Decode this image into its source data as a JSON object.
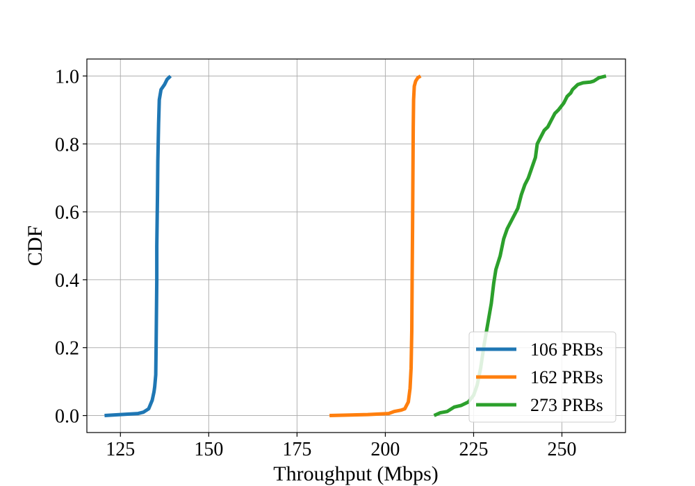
{
  "chart_data": {
    "type": "line",
    "title": "",
    "xlabel": "Throughput (Mbps)",
    "ylabel": "CDF",
    "xlim": [
      115.5,
      268
    ],
    "ylim": [
      -0.05,
      1.05
    ],
    "xticks": [
      125,
      150,
      175,
      200,
      225,
      250
    ],
    "yticks": [
      0.0,
      0.2,
      0.4,
      0.6,
      0.8,
      1.0
    ],
    "xtick_labels": [
      "125",
      "150",
      "175",
      "200",
      "225",
      "250"
    ],
    "ytick_labels": [
      "0.0",
      "0.2",
      "0.4",
      "0.6",
      "0.8",
      "1.0"
    ],
    "grid": true,
    "legend_position": "lower-right",
    "series": [
      {
        "name": "106 PRBs",
        "color": "#1f77b4",
        "x": [
          120.5,
          125,
          130,
          131.5,
          133,
          134,
          134.5,
          134.7,
          135,
          135.1,
          135.2,
          135.3,
          135.3,
          135.5,
          135.6,
          135.8,
          136.0,
          136.5,
          137.5,
          138.2,
          139.2
        ],
        "y": [
          0.0,
          0.003,
          0.006,
          0.01,
          0.02,
          0.045,
          0.07,
          0.085,
          0.12,
          0.2,
          0.3,
          0.4,
          0.5,
          0.65,
          0.75,
          0.86,
          0.93,
          0.96,
          0.975,
          0.99,
          1.0
        ]
      },
      {
        "name": "162 PRBs",
        "color": "#ff7f0e",
        "x": [
          184.2,
          195,
          201,
          202.5,
          204.5,
          205.5,
          206.5,
          207,
          207.3,
          207.5,
          207.6,
          207.7,
          207.8,
          207.9,
          208.0,
          208.2,
          208.6,
          209.2,
          210.0
        ],
        "y": [
          0.0,
          0.003,
          0.006,
          0.012,
          0.016,
          0.02,
          0.04,
          0.08,
          0.14,
          0.25,
          0.4,
          0.55,
          0.7,
          0.85,
          0.93,
          0.97,
          0.985,
          0.995,
          1.0
        ]
      },
      {
        "name": "273 PRBs",
        "color": "#2ca02c",
        "x": [
          213.8,
          215.5,
          217.5,
          219.5,
          221.5,
          223.5,
          225,
          226,
          227,
          228,
          229,
          230,
          230.7,
          231.3,
          232.5,
          233.5,
          234.5,
          236,
          237.5,
          238.5,
          239.5,
          240.5,
          241.5,
          242.5,
          243,
          244,
          245,
          246,
          247,
          248,
          249,
          250.5,
          251.5,
          252.5,
          253,
          254.5,
          256,
          258,
          259,
          260.5,
          262.5
        ],
        "y": [
          0.0,
          0.008,
          0.012,
          0.025,
          0.03,
          0.04,
          0.06,
          0.09,
          0.14,
          0.21,
          0.27,
          0.33,
          0.39,
          0.43,
          0.47,
          0.52,
          0.55,
          0.58,
          0.61,
          0.65,
          0.68,
          0.7,
          0.73,
          0.76,
          0.8,
          0.82,
          0.84,
          0.85,
          0.87,
          0.89,
          0.9,
          0.92,
          0.94,
          0.95,
          0.96,
          0.975,
          0.98,
          0.982,
          0.985,
          0.995,
          1.0
        ]
      }
    ]
  }
}
